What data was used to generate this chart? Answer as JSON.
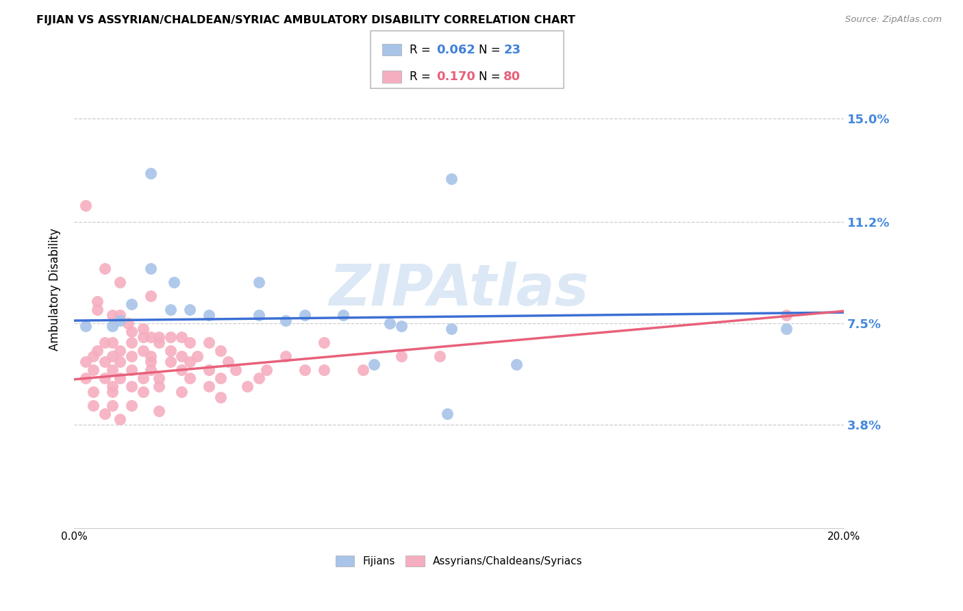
{
  "title": "FIJIAN VS ASSYRIAN/CHALDEAN/SYRIAC AMBULATORY DISABILITY CORRELATION CHART",
  "source": "Source: ZipAtlas.com",
  "ylabel": "Ambulatory Disability",
  "xlim": [
    0.0,
    0.2
  ],
  "ylim": [
    0.0,
    0.175
  ],
  "yticks": [
    0.038,
    0.075,
    0.112,
    0.15
  ],
  "ytick_labels": [
    "3.8%",
    "7.5%",
    "11.2%",
    "15.0%"
  ],
  "xticks": [
    0.0,
    0.05,
    0.1,
    0.15,
    0.2
  ],
  "xtick_labels": [
    "0.0%",
    "",
    "",
    "",
    "20.0%"
  ],
  "fijian_color": "#a8c4e8",
  "assyrian_color": "#f5aec0",
  "fijian_line_color": "#3b6fd4",
  "assyrian_line_color": "#e8607a",
  "watermark": "ZIPAtlas",
  "watermark_color": "#dce8f5",
  "fijian_R": "0.062",
  "fijian_N": "23",
  "assyrian_R": "0.170",
  "assyrian_N": "80",
  "legend_text_color_blue": "#4080d8",
  "legend_text_color_pink": "#e8607a",
  "fijian_points": [
    [
      0.02,
      0.13
    ],
    [
      0.098,
      0.128
    ],
    [
      0.02,
      0.095
    ],
    [
      0.026,
      0.09
    ],
    [
      0.048,
      0.09
    ],
    [
      0.015,
      0.082
    ],
    [
      0.025,
      0.08
    ],
    [
      0.03,
      0.08
    ],
    [
      0.048,
      0.078
    ],
    [
      0.035,
      0.078
    ],
    [
      0.06,
      0.078
    ],
    [
      0.07,
      0.078
    ],
    [
      0.012,
      0.076
    ],
    [
      0.055,
      0.076
    ],
    [
      0.082,
      0.075
    ],
    [
      0.003,
      0.074
    ],
    [
      0.01,
      0.074
    ],
    [
      0.085,
      0.074
    ],
    [
      0.098,
      0.073
    ],
    [
      0.078,
      0.06
    ],
    [
      0.115,
      0.06
    ],
    [
      0.097,
      0.042
    ],
    [
      0.185,
      0.073
    ]
  ],
  "assyrian_points": [
    [
      0.003,
      0.118
    ],
    [
      0.008,
      0.095
    ],
    [
      0.012,
      0.09
    ],
    [
      0.02,
      0.085
    ],
    [
      0.006,
      0.083
    ],
    [
      0.006,
      0.08
    ],
    [
      0.01,
      0.078
    ],
    [
      0.012,
      0.078
    ],
    [
      0.014,
      0.075
    ],
    [
      0.018,
      0.073
    ],
    [
      0.015,
      0.072
    ],
    [
      0.018,
      0.07
    ],
    [
      0.02,
      0.07
    ],
    [
      0.022,
      0.07
    ],
    [
      0.025,
      0.07
    ],
    [
      0.028,
      0.07
    ],
    [
      0.008,
      0.068
    ],
    [
      0.01,
      0.068
    ],
    [
      0.015,
      0.068
    ],
    [
      0.022,
      0.068
    ],
    [
      0.03,
      0.068
    ],
    [
      0.035,
      0.068
    ],
    [
      0.065,
      0.068
    ],
    [
      0.006,
      0.065
    ],
    [
      0.012,
      0.065
    ],
    [
      0.018,
      0.065
    ],
    [
      0.025,
      0.065
    ],
    [
      0.038,
      0.065
    ],
    [
      0.005,
      0.063
    ],
    [
      0.01,
      0.063
    ],
    [
      0.015,
      0.063
    ],
    [
      0.02,
      0.063
    ],
    [
      0.028,
      0.063
    ],
    [
      0.032,
      0.063
    ],
    [
      0.055,
      0.063
    ],
    [
      0.085,
      0.063
    ],
    [
      0.095,
      0.063
    ],
    [
      0.003,
      0.061
    ],
    [
      0.008,
      0.061
    ],
    [
      0.012,
      0.061
    ],
    [
      0.02,
      0.061
    ],
    [
      0.025,
      0.061
    ],
    [
      0.03,
      0.061
    ],
    [
      0.04,
      0.061
    ],
    [
      0.005,
      0.058
    ],
    [
      0.01,
      0.058
    ],
    [
      0.015,
      0.058
    ],
    [
      0.02,
      0.058
    ],
    [
      0.028,
      0.058
    ],
    [
      0.035,
      0.058
    ],
    [
      0.042,
      0.058
    ],
    [
      0.05,
      0.058
    ],
    [
      0.06,
      0.058
    ],
    [
      0.065,
      0.058
    ],
    [
      0.075,
      0.058
    ],
    [
      0.003,
      0.055
    ],
    [
      0.008,
      0.055
    ],
    [
      0.012,
      0.055
    ],
    [
      0.018,
      0.055
    ],
    [
      0.022,
      0.055
    ],
    [
      0.03,
      0.055
    ],
    [
      0.038,
      0.055
    ],
    [
      0.048,
      0.055
    ],
    [
      0.01,
      0.052
    ],
    [
      0.015,
      0.052
    ],
    [
      0.022,
      0.052
    ],
    [
      0.035,
      0.052
    ],
    [
      0.045,
      0.052
    ],
    [
      0.005,
      0.05
    ],
    [
      0.01,
      0.05
    ],
    [
      0.018,
      0.05
    ],
    [
      0.028,
      0.05
    ],
    [
      0.038,
      0.048
    ],
    [
      0.005,
      0.045
    ],
    [
      0.01,
      0.045
    ],
    [
      0.015,
      0.045
    ],
    [
      0.022,
      0.043
    ],
    [
      0.008,
      0.042
    ],
    [
      0.012,
      0.04
    ],
    [
      0.185,
      0.078
    ]
  ]
}
